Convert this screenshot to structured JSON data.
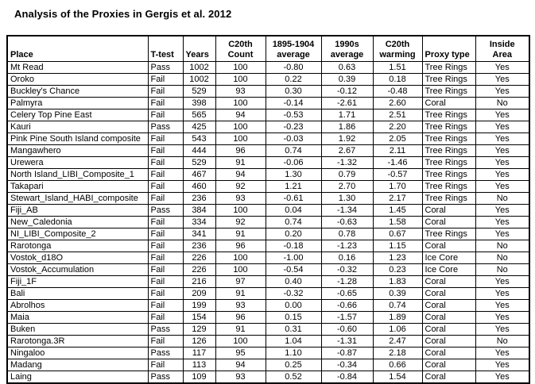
{
  "title": "Analysis of the Proxies in Gergis et al. 2012",
  "table": {
    "columns": [
      {
        "key": "place",
        "label": "Place"
      },
      {
        "key": "t-test",
        "label": "T-test"
      },
      {
        "key": "years",
        "label": "Years"
      },
      {
        "key": "c20th-count",
        "label": "C20th\nCount"
      },
      {
        "key": "avg-1895-1904",
        "label": "1895-1904\naverage"
      },
      {
        "key": "avg-1990s",
        "label": "1990s\naverage"
      },
      {
        "key": "c20th-warming",
        "label": "C20th\nwarming"
      },
      {
        "key": "proxy-type",
        "label": "Proxy type"
      },
      {
        "key": "inside-area",
        "label": "Inside\nArea"
      }
    ],
    "rows": [
      [
        "Mt Read",
        "Pass",
        "1002",
        "100",
        "-0.80",
        "0.63",
        "1.51",
        "Tree Rings",
        "Yes"
      ],
      [
        "Oroko",
        "Fail",
        "1002",
        "100",
        "0.22",
        "0.39",
        "0.18",
        "Tree Rings",
        "Yes"
      ],
      [
        "Buckley's Chance",
        "Fail",
        "529",
        "93",
        "0.30",
        "-0.12",
        "-0.48",
        "Tree Rings",
        "Yes"
      ],
      [
        "Palmyra",
        "Fail",
        "398",
        "100",
        "-0.14",
        "-2.61",
        "2.60",
        "Coral",
        "No"
      ],
      [
        "Celery Top Pine East",
        "Fail",
        "565",
        "94",
        "-0.53",
        "1.71",
        "2.51",
        "Tree Rings",
        "Yes"
      ],
      [
        "Kauri",
        "Pass",
        "425",
        "100",
        "-0.23",
        "1.86",
        "2.20",
        "Tree Rings",
        "Yes"
      ],
      [
        "Pink Pine South Island composite",
        "Fail",
        "543",
        "100",
        "-0.03",
        "1.92",
        "2.05",
        "Tree Rings",
        "Yes"
      ],
      [
        "Mangawhero",
        "Fail",
        "444",
        "96",
        "0.74",
        "2.67",
        "2.11",
        "Tree Rings",
        "Yes"
      ],
      [
        "Urewera",
        "Fail",
        "529",
        "91",
        "-0.06",
        "-1.32",
        "-1.46",
        "Tree Rings",
        "Yes"
      ],
      [
        "North Island_LIBI_Composite_1",
        "Fail",
        "467",
        "94",
        "1.30",
        "0.79",
        "-0.57",
        "Tree Rings",
        "Yes"
      ],
      [
        "Takapari",
        "Fail",
        "460",
        "92",
        "1.21",
        "2.70",
        "1.70",
        "Tree Rings",
        "Yes"
      ],
      [
        "Stewart_Island_HABI_composite",
        "Fail",
        "236",
        "93",
        "-0.61",
        "1.30",
        "2.17",
        "Tree Rings",
        "No"
      ],
      [
        "Fiji_AB",
        "Pass",
        "384",
        "100",
        "0.04",
        "-1.34",
        "1.45",
        "Coral",
        "Yes"
      ],
      [
        "New_Caledonia",
        "Fail",
        "334",
        "92",
        "0.74",
        "-0.63",
        "1.58",
        "Coral",
        "Yes"
      ],
      [
        "NI_LIBI_Composite_2",
        "Fail",
        "341",
        "91",
        "0.20",
        "0.78",
        "0.67",
        "Tree Rings",
        "Yes"
      ],
      [
        "Rarotonga",
        "Fail",
        "236",
        "96",
        "-0.18",
        "-1.23",
        "1.15",
        "Coral",
        "No"
      ],
      [
        "Vostok_d18O",
        "Fail",
        "226",
        "100",
        "-1.00",
        "0.16",
        "1.23",
        "Ice Core",
        "No"
      ],
      [
        "Vostok_Accumulation",
        "Fail",
        "226",
        "100",
        "-0.54",
        "-0.32",
        "0.23",
        "Ice Core",
        "No"
      ],
      [
        "Fiji_1F",
        "Fail",
        "216",
        "97",
        "0.40",
        "-1.28",
        "1.83",
        "Coral",
        "Yes"
      ],
      [
        "Bali",
        "Fail",
        "209",
        "91",
        "-0.32",
        "-0.65",
        "0.39",
        "Coral",
        "Yes"
      ],
      [
        "Abrolhos",
        "Fail",
        "199",
        "93",
        "0.00",
        "-0.66",
        "0.74",
        "Coral",
        "Yes"
      ],
      [
        "Maia",
        "Fail",
        "154",
        "96",
        "0.15",
        "-1.57",
        "1.89",
        "Coral",
        "Yes"
      ],
      [
        "Buken",
        "Pass",
        "129",
        "91",
        "0.31",
        "-0.60",
        "1.06",
        "Coral",
        "Yes"
      ],
      [
        "Rarotonga.3R",
        "Fail",
        "126",
        "100",
        "1.04",
        "-1.31",
        "2.47",
        "Coral",
        "No"
      ],
      [
        "Ningaloo",
        "Pass",
        "117",
        "95",
        "1.10",
        "-0.87",
        "2.18",
        "Coral",
        "Yes"
      ],
      [
        "Madang",
        "Fail",
        "113",
        "94",
        "0.25",
        "-0.34",
        "0.66",
        "Coral",
        "Yes"
      ],
      [
        "Laing",
        "Pass",
        "109",
        "93",
        "0.52",
        "-0.84",
        "1.54",
        "Coral",
        "Yes"
      ]
    ]
  }
}
